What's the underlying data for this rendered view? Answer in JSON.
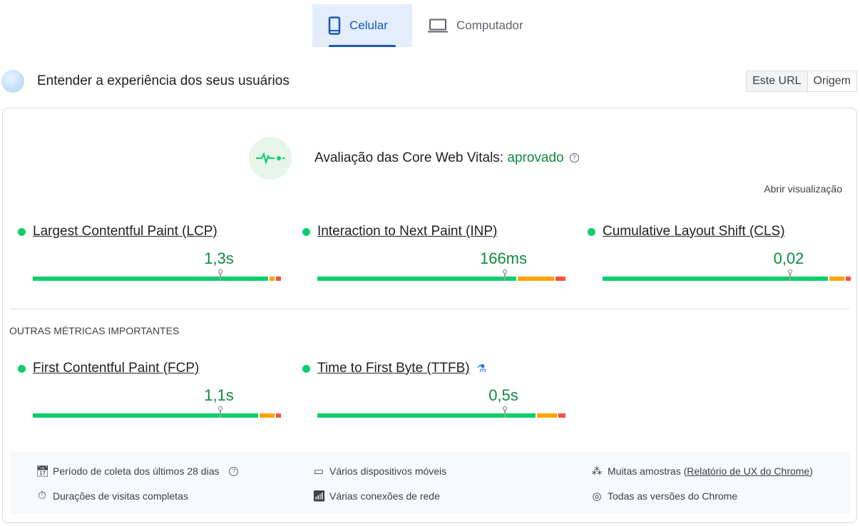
{
  "tabs": [
    {
      "label": "Celular",
      "icon": "phone-icon",
      "active": true
    },
    {
      "label": "Computador",
      "icon": "laptop-icon",
      "active": false
    }
  ],
  "header": {
    "title": "Entender a experiência dos seus usuários",
    "segments": [
      "Este URL",
      "Origem"
    ],
    "selected": "Este URL"
  },
  "assessment": {
    "label": "Avaliação das Core Web Vitals:",
    "status": "aprovado",
    "open_view": "Abrir visualização"
  },
  "colors": {
    "good": "#0cce6b",
    "needs_improvement": "#ffa400",
    "poor": "#ff4e42",
    "value_text": "#0d8a3f"
  },
  "core_metrics": [
    {
      "name": "Largest Contentful Paint (LCP)",
      "value": "1,3s",
      "distribution": [
        96,
        2,
        2
      ],
      "marker": 75
    },
    {
      "name": "Interaction to Next Paint (INP)",
      "value": "166ms",
      "distribution": [
        81,
        15,
        4
      ],
      "marker": 75
    },
    {
      "name": "Cumulative Layout Shift (CLS)",
      "value": "0,02",
      "distribution": [
        92,
        6,
        2
      ],
      "marker": 75
    }
  ],
  "other_title": "OUTRAS MÉTRICAS IMPORTANTES",
  "other_metrics": [
    {
      "name": "First Contentful Paint (FCP)",
      "value": "1,1s",
      "distribution": [
        92,
        6,
        2
      ],
      "marker": 75
    },
    {
      "name": "Time to First Byte (TTFB)",
      "value": "0,5s",
      "distribution": [
        89,
        8,
        3
      ],
      "marker": 75,
      "experimental_icon": "flask-icon"
    }
  ],
  "footer": {
    "period": "Período de coleta dos últimos 28 dias",
    "durations": "Durações de visitas completas",
    "devices": "Vários dispositivos móveis",
    "network": "Várias conexões de rede",
    "samples_prefix": "Muitas amostras (",
    "samples_link": "Relatório de UX do Chrome",
    "samples_suffix": ")",
    "chrome": "Todas as versões do Chrome"
  }
}
